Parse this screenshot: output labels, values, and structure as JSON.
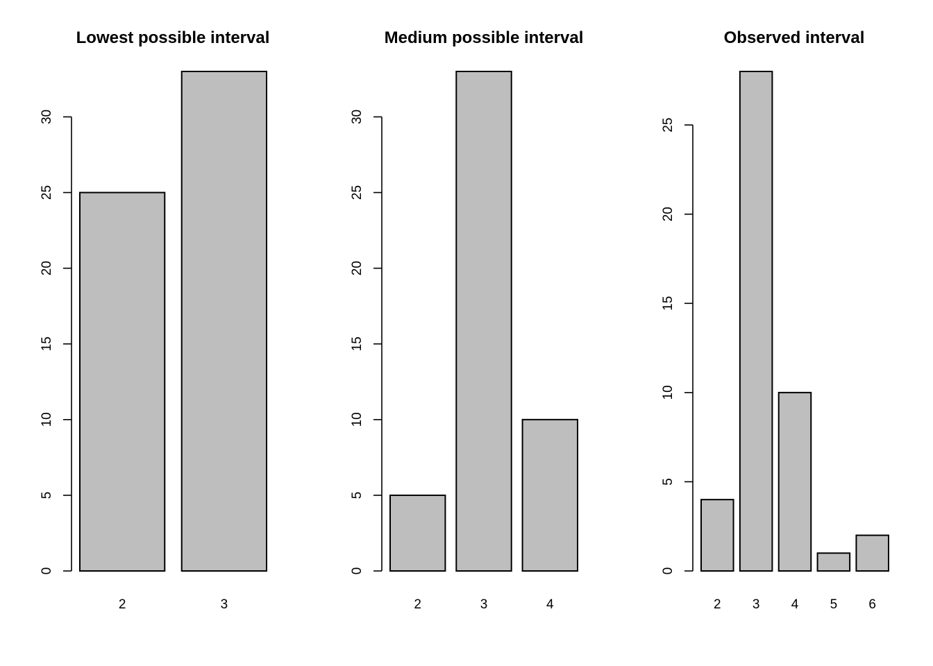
{
  "chart_data": [
    {
      "type": "bar",
      "title": "Lowest possible interval",
      "categories": [
        "2",
        "3"
      ],
      "values": [
        25,
        33
      ],
      "xlabel": "",
      "ylabel": "",
      "yticks": [
        0,
        5,
        10,
        15,
        20,
        25,
        30
      ],
      "ylim": [
        0,
        33
      ],
      "grid": false,
      "bar_color": "#bebebe"
    },
    {
      "type": "bar",
      "title": "Medium possible interval",
      "categories": [
        "2",
        "3",
        "4"
      ],
      "values": [
        5,
        33,
        10
      ],
      "xlabel": "",
      "ylabel": "",
      "yticks": [
        0,
        5,
        10,
        15,
        20,
        25,
        30
      ],
      "ylim": [
        0,
        33
      ],
      "grid": false,
      "bar_color": "#bebebe"
    },
    {
      "type": "bar",
      "title": "Observed interval",
      "categories": [
        "2",
        "3",
        "4",
        "5",
        "6"
      ],
      "values": [
        4,
        28,
        10,
        1,
        2
      ],
      "xlabel": "",
      "ylabel": "",
      "yticks": [
        0,
        5,
        10,
        15,
        20,
        25
      ],
      "ylim": [
        0,
        28
      ],
      "grid": false,
      "bar_color": "#bebebe"
    }
  ]
}
